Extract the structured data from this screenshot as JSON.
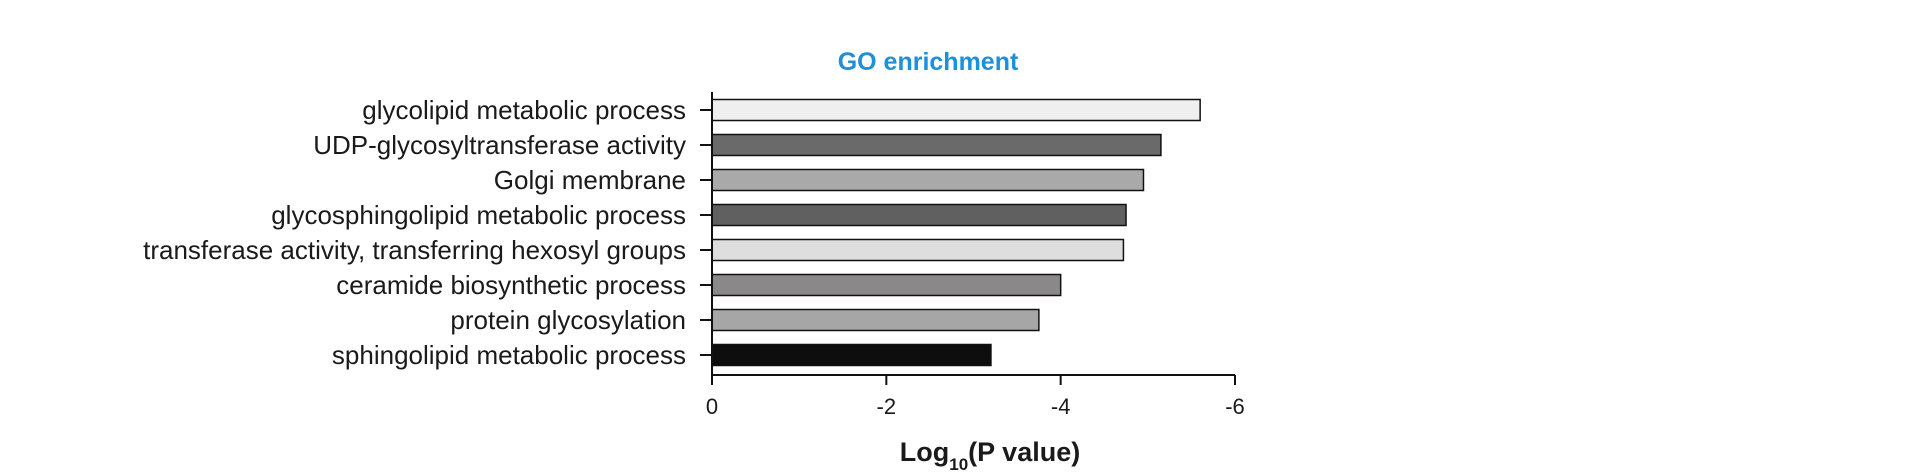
{
  "chart_data": {
    "type": "bar",
    "orientation": "horizontal",
    "title": "GO enrichment",
    "xlabel_main": "Log",
    "xlabel_sub": "10",
    "xlabel_rest": "(P value)",
    "ylabel": "",
    "xlim": [
      0,
      -6
    ],
    "xticks": [
      "0",
      "-2",
      "-4",
      "-6"
    ],
    "xtick_values": [
      0,
      -2,
      -4,
      -6
    ],
    "categories": [
      "glycolipid metabolic process",
      "UDP-glycosyltransferase activity",
      "Golgi membrane",
      "glycosphingolipid metabolic process",
      "transferase activity, transferring hexosyl groups",
      "ceramide biosynthetic process",
      "protein glycosylation",
      "sphingolipid metabolic process"
    ],
    "values": [
      -5.6,
      -5.15,
      -4.95,
      -4.75,
      -4.72,
      -4.0,
      -3.75,
      -3.2
    ],
    "colors": [
      "#efefef",
      "#6a6a6a",
      "#a9a9a9",
      "#606060",
      "#dedede",
      "#8a8888",
      "#a6a6a6",
      "#0e0e0e"
    ],
    "grid": false,
    "legend": "none"
  }
}
